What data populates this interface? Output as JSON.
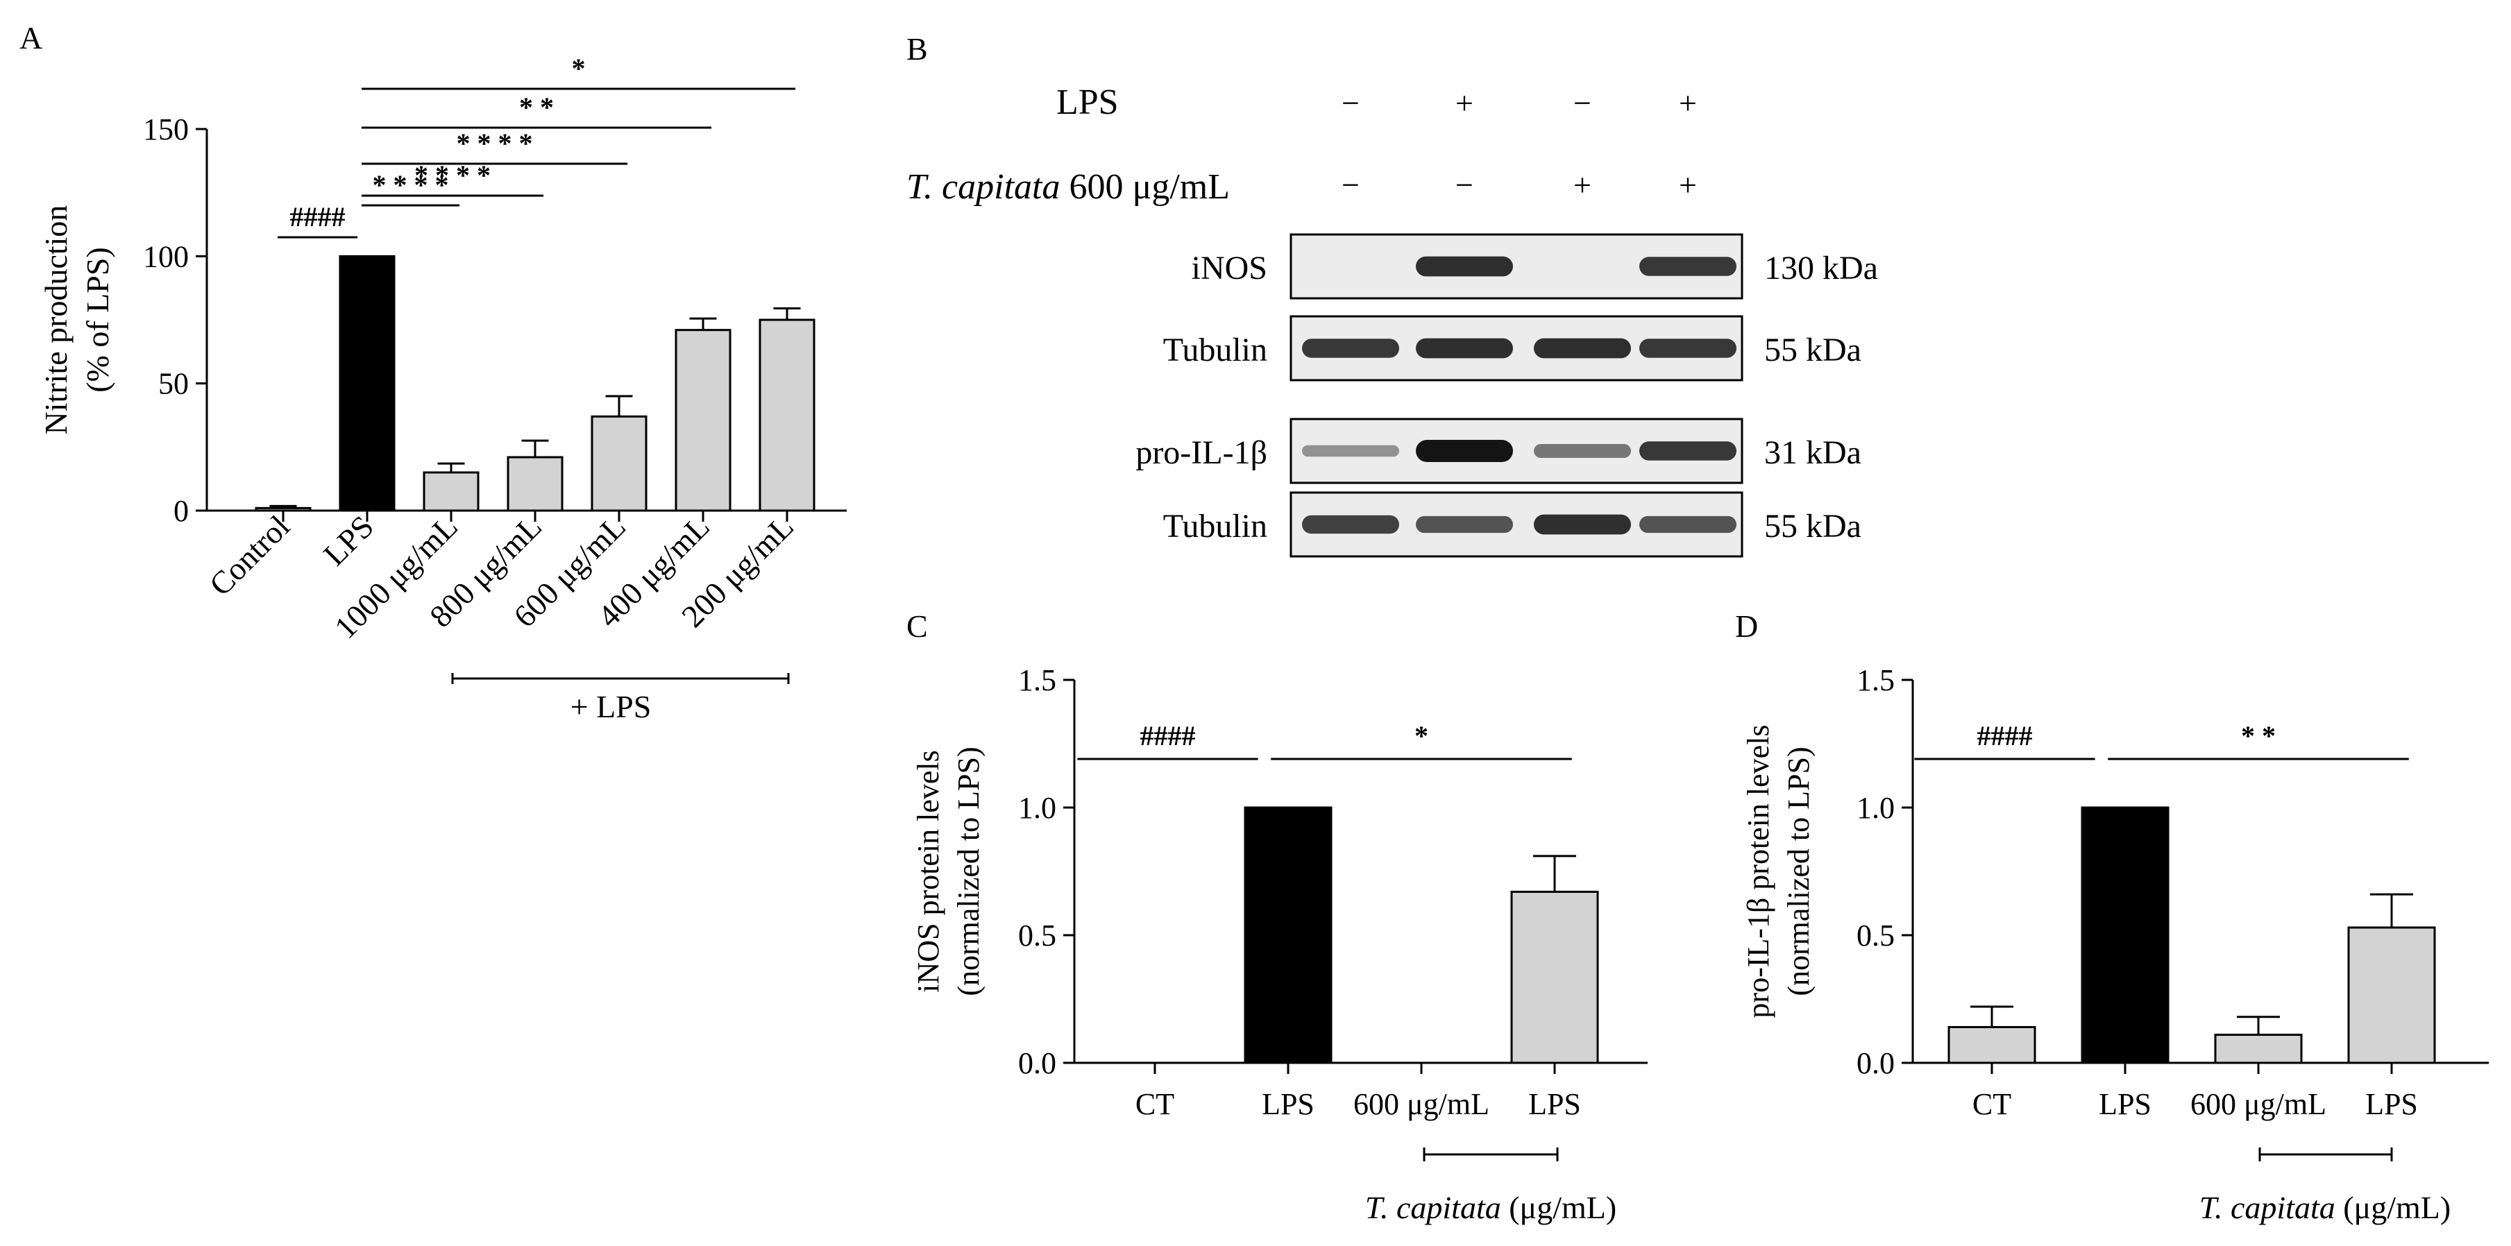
{
  "panels": {
    "A": "A",
    "B": "B",
    "C": "C",
    "D": "D"
  },
  "colors": {
    "lps_bar": "#000000",
    "treated_bar": "#d3d3d3",
    "axis": "#000000"
  },
  "panel_a_extra": {
    "bracket_label": "+ LPS"
  },
  "blot": {
    "row_labels": {
      "lps": "LPS",
      "tc_italic": "T. capitata",
      "tc_rest": " 600 μg/mL"
    },
    "lps_signs": [
      "−",
      "+",
      "−",
      "+"
    ],
    "tc_signs": [
      "−",
      "−",
      "+",
      "+"
    ],
    "bands": [
      {
        "name": "iNOS",
        "kda": "130 kDa",
        "intensity": [
          0,
          0.85,
          0,
          0.8
        ]
      },
      {
        "name": "Tubulin",
        "kda": "55 kDa",
        "intensity": [
          0.8,
          0.85,
          0.85,
          0.8
        ]
      },
      {
        "name": "pro-IL-1β",
        "kda": "31 kDa",
        "intensity": [
          0.3,
          1.0,
          0.45,
          0.8
        ]
      },
      {
        "name": "Tubulin",
        "kda": "55 kDa",
        "intensity": [
          0.75,
          0.65,
          0.85,
          0.65
        ]
      }
    ]
  },
  "panel_cd_xaxis": {
    "bracket_italic": "T. capitata",
    "bracket_rest": " (μg/mL)"
  },
  "chart_data": [
    {
      "id": "A",
      "type": "bar",
      "categories": [
        "Control",
        "LPS",
        "1000 μg/mL",
        "800 μg/mL",
        "600 μg/mL",
        "400 μg/mL",
        "200 μg/mL"
      ],
      "values": [
        1,
        100,
        15,
        21,
        37,
        71,
        75
      ],
      "errors": [
        0.8,
        0,
        3.5,
        6.5,
        8,
        4.5,
        4.5
      ],
      "ylabel_line1": "Nitrite production",
      "ylabel_line2": "(% of LPS)",
      "ylim": [
        0,
        150
      ],
      "yticks": [
        0,
        50,
        100,
        150
      ],
      "significance": [
        {
          "from": 0,
          "to": 1,
          "label": "####"
        },
        {
          "from": 1,
          "to": 2,
          "label": "* * * *"
        },
        {
          "from": 1,
          "to": 3,
          "label": "* * * *"
        },
        {
          "from": 1,
          "to": 4,
          "label": "* * * *"
        },
        {
          "from": 1,
          "to": 5,
          "label": "* *"
        },
        {
          "from": 1,
          "to": 6,
          "label": "*"
        }
      ]
    },
    {
      "id": "C",
      "type": "bar",
      "categories": [
        "CT",
        "LPS",
        "600 μg/mL",
        "LPS"
      ],
      "values": [
        0,
        1.0,
        0,
        0.67
      ],
      "errors": [
        0,
        0,
        0,
        0.14
      ],
      "ylabel_line1": "iNOS protein levels",
      "ylabel_line2": "(normalized to LPS)",
      "ylim": [
        0,
        1.5
      ],
      "yticks": [
        "0.0",
        "0.5",
        "1.0",
        "1.5"
      ],
      "significance": [
        {
          "from": 0,
          "to": 1,
          "label": "####"
        },
        {
          "from": 1,
          "to": 3,
          "label": "*"
        }
      ]
    },
    {
      "id": "D",
      "type": "bar",
      "categories": [
        "CT",
        "LPS",
        "600 μg/mL",
        "LPS"
      ],
      "values": [
        0.14,
        1.0,
        0.11,
        0.53
      ],
      "errors": [
        0.08,
        0,
        0.07,
        0.13
      ],
      "ylabel_line1": "pro-IL-1β protein levels",
      "ylabel_line2": "(normalized to LPS)",
      "ylim": [
        0,
        1.5
      ],
      "yticks": [
        "0.0",
        "0.5",
        "1.0",
        "1.5"
      ],
      "significance": [
        {
          "from": 0,
          "to": 1,
          "label": "####"
        },
        {
          "from": 1,
          "to": 3,
          "label": "* *"
        }
      ]
    }
  ]
}
